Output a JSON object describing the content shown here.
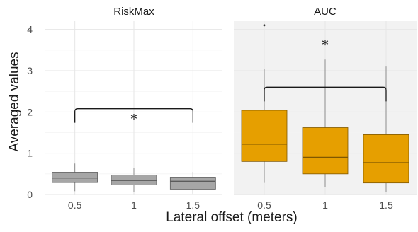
{
  "chart_data": {
    "type": "boxplot",
    "xlabel": "Lateral offset (meters)",
    "ylabel": "Averaged values",
    "ylim": [
      0,
      4.2
    ],
    "yticks": [
      0,
      1,
      2,
      3,
      4
    ],
    "categories": [
      "0.5",
      "1",
      "1.5"
    ],
    "grid": true,
    "panels": [
      {
        "strip_label": "RiskMax",
        "color": "#a6a6a6",
        "boxes": [
          {
            "x": "0.5",
            "whisker_low": 0.08,
            "q1": 0.29,
            "median": 0.4,
            "q3": 0.54,
            "whisker_high": 0.75
          },
          {
            "x": "1",
            "whisker_low": 0.06,
            "q1": 0.23,
            "median": 0.34,
            "q3": 0.47,
            "whisker_high": 0.65
          },
          {
            "x": "1.5",
            "whisker_low": 0.02,
            "q1": 0.13,
            "median": 0.32,
            "q3": 0.42,
            "whisker_high": 0.55
          }
        ],
        "outliers": [],
        "bracket": {
          "from": "0.5",
          "to": "1.5",
          "y": 2.08,
          "label": "*"
        }
      },
      {
        "strip_label": "AUC",
        "color": "#e69f00",
        "boxes": [
          {
            "x": "0.5",
            "whisker_low": 0.28,
            "q1": 0.8,
            "median": 1.22,
            "q3": 2.04,
            "whisker_high": 3.05
          },
          {
            "x": "1",
            "whisker_low": 0.18,
            "q1": 0.5,
            "median": 0.9,
            "q3": 1.62,
            "whisker_high": 3.27
          },
          {
            "x": "1.5",
            "whisker_low": 0.06,
            "q1": 0.28,
            "median": 0.77,
            "q3": 1.45,
            "whisker_high": 3.1
          }
        ],
        "outliers": [
          {
            "x": "0.5",
            "y": 4.1
          }
        ],
        "bracket": {
          "from": "0.5",
          "to": "1.5",
          "y": 2.6,
          "label": "*"
        }
      }
    ]
  }
}
